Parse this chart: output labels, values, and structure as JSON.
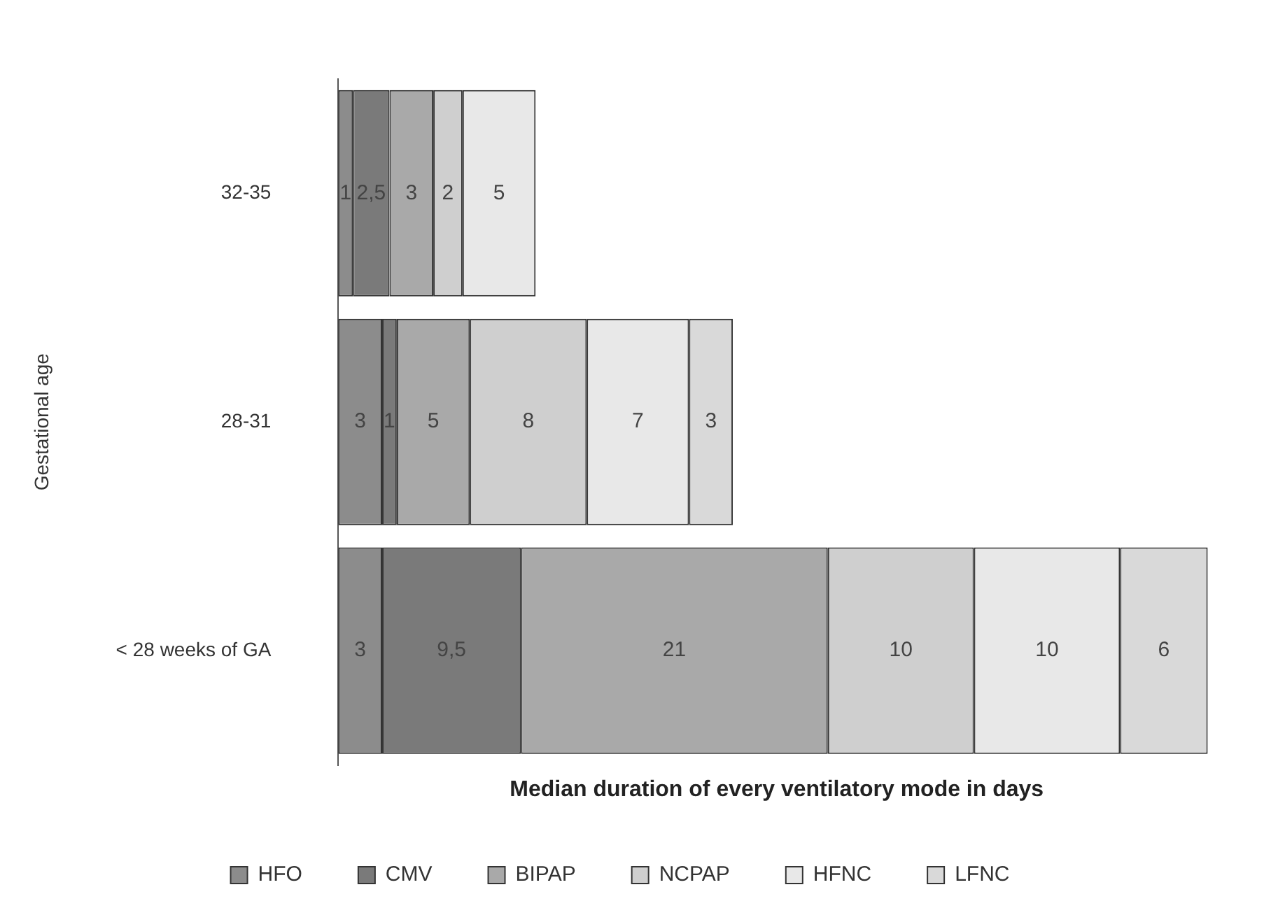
{
  "chart_data": {
    "type": "bar",
    "orientation": "horizontal",
    "stacked": true,
    "ylabel": "Gestational age",
    "xlabel": "Median duration of every ventilatory mode in days",
    "categories": [
      "32-35",
      "28-31",
      "< 28 weeks of GA"
    ],
    "series": [
      {
        "name": "HFO",
        "color": "#8c8c8c",
        "values": [
          1,
          3,
          3
        ],
        "value_labels": [
          "1",
          "3",
          "3"
        ]
      },
      {
        "name": "CMV",
        "color": "#7a7a7a",
        "values": [
          2.5,
          1,
          9.5
        ],
        "value_labels": [
          "2,5",
          "1",
          "9,5"
        ]
      },
      {
        "name": "BIPAP",
        "color": "#a9a9a9",
        "values": [
          3,
          5,
          21
        ],
        "value_labels": [
          "3",
          "5",
          "21"
        ]
      },
      {
        "name": "NCPAP",
        "color": "#cfcfcf",
        "values": [
          2,
          8,
          10
        ],
        "value_labels": [
          "2",
          "8",
          "10"
        ]
      },
      {
        "name": "HFNC",
        "color": "#e8e8e8",
        "values": [
          5,
          7,
          10
        ],
        "value_labels": [
          "5",
          "7",
          "10"
        ]
      },
      {
        "name": "LFNC",
        "color": "#d9d9d9",
        "values": [
          null,
          3,
          6
        ],
        "value_labels": [
          null,
          "3",
          "6"
        ]
      }
    ],
    "tick_labels": "y",
    "grid": false,
    "legend": "bottom"
  }
}
